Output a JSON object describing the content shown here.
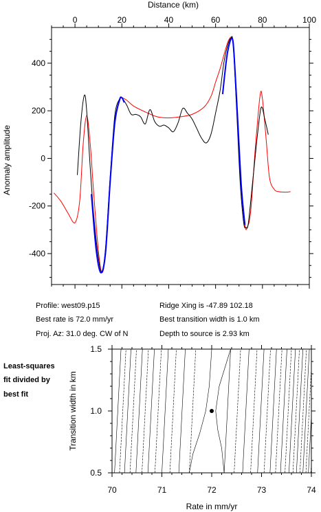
{
  "chart_data": [
    {
      "type": "line",
      "xlabel": "Distance (km)",
      "ylabel": "Anomaly amplitude",
      "xlim": [
        -10,
        100
      ],
      "ylim": [
        -530,
        550
      ],
      "x_ticks": [
        0,
        20,
        40,
        60,
        80,
        100
      ],
      "x_tick_labels": [
        "0",
        "20",
        "40",
        "60",
        "80",
        "100"
      ],
      "y_ticks": [
        -400,
        -200,
        0,
        200,
        400
      ],
      "y_tick_labels": [
        "-400",
        "-200",
        "0",
        "200",
        "400"
      ],
      "grid": false,
      "series": [
        {
          "color": "#ff0000",
          "x": [
            -9,
            -6,
            -3,
            0,
            2,
            3.5,
            5,
            6.5,
            8,
            10,
            11.5,
            13,
            15,
            17,
            19,
            20,
            22,
            25,
            30,
            35,
            40,
            45,
            50,
            55,
            58,
            60,
            62,
            64,
            65.5,
            67,
            68,
            69.5,
            71,
            72.5,
            73.5,
            75,
            77,
            79,
            80,
            81.5,
            83,
            85,
            87,
            90,
            92
          ],
          "y": [
            -145,
            -180,
            -230,
            -270,
            -180,
            60,
            180,
            60,
            -150,
            -390,
            -480,
            -400,
            -100,
            150,
            245,
            255,
            245,
            220,
            195,
            175,
            170,
            175,
            185,
            215,
            260,
            320,
            380,
            450,
            495,
            505,
            420,
            150,
            -120,
            -280,
            -290,
            -220,
            50,
            265,
            250,
            90,
            -80,
            -130,
            -140,
            -142,
            -140
          ]
        },
        {
          "color": "#000000",
          "x": [
            1,
            2.5,
            4,
            5,
            6.5,
            8,
            10,
            11.5,
            13,
            15,
            17,
            19,
            20,
            22,
            24,
            26,
            28,
            30,
            32,
            34,
            36,
            38,
            40,
            42,
            44,
            46,
            48,
            50,
            52,
            54,
            56,
            58,
            60,
            62,
            63.5,
            65,
            66.5,
            67.5,
            69,
            70.5,
            72,
            73,
            74,
            76,
            78,
            79.5,
            81,
            82.5
          ],
          "y": [
            -70,
            150,
            265,
            200,
            -40,
            -240,
            -420,
            -475,
            -380,
            -80,
            180,
            250,
            255,
            225,
            185,
            185,
            175,
            145,
            205,
            155,
            135,
            140,
            128,
            112,
            150,
            210,
            190,
            165,
            125,
            85,
            65,
            100,
            190,
            290,
            400,
            470,
            505,
            480,
            200,
            -100,
            -270,
            -290,
            -270,
            -80,
            110,
            215,
            165,
            100
          ]
        },
        {
          "color": "#0000ff",
          "x": [
            7,
            9,
            11,
            13,
            15,
            17,
            19,
            20,
            21,
            63,
            65,
            67,
            68,
            69.5,
            71,
            72.5
          ],
          "y": [
            -150,
            -380,
            -480,
            -400,
            -100,
            150,
            245,
            255,
            235,
            270,
            440,
            505,
            420,
            150,
            -120,
            -280
          ],
          "break_after_index": 8
        }
      ]
    },
    {
      "type": "contour",
      "xlabel": "Rate in mm/yr",
      "ylabel": "Transition width in km",
      "xlim": [
        70,
        74
      ],
      "ylim": [
        0.5,
        1.5
      ],
      "x_ticks": [
        70,
        71,
        72,
        73,
        74
      ],
      "x_tick_labels": [
        "70",
        "71",
        "72",
        "73",
        "74"
      ],
      "y_ticks": [
        0.5,
        1.0,
        1.5
      ],
      "y_tick_labels": [
        "0.5",
        "1.0",
        "1.5"
      ],
      "best_fit": {
        "x": 72.0,
        "y": 1.0
      },
      "left_contour_bottoms": [
        70.05,
        70.15,
        70.25,
        70.36,
        70.48,
        70.6,
        70.72,
        70.86,
        71.0,
        71.16,
        71.34,
        71.55
      ],
      "right_contour_bottoms": [
        72.25,
        72.45,
        72.62,
        72.78,
        72.92,
        73.05,
        73.17,
        73.28,
        73.38,
        73.47,
        73.55,
        73.63,
        73.7,
        73.77,
        73.83,
        73.89,
        73.94,
        73.99
      ],
      "top_tilt": 0.13
    }
  ],
  "info": {
    "profile": "Profile: west09.p15",
    "best_rate": "Best rate is 72.0 mm/yr",
    "proj_az": "Proj. Az: 31.0 deg. CW of N",
    "ridge_xing": "Ridge Xing is -47.89 102.18",
    "best_width": "Best transition width is 1.0 km",
    "depth": "Depth to source is   2.93 km"
  },
  "side_label": [
    "Least-squares",
    "fit divided by",
    "best fit"
  ]
}
